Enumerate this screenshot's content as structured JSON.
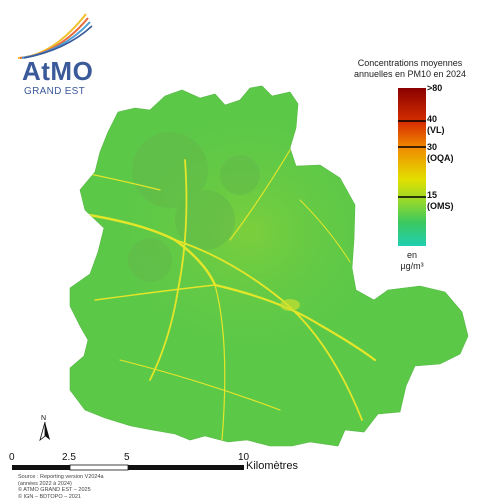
{
  "logo": {
    "name": "AtMO",
    "subtitle": "GRAND EST",
    "accent_colors": [
      "#f2c12e",
      "#e86a3a",
      "#4a9fd8",
      "#3b5a9a"
    ]
  },
  "legend": {
    "title_line1": "Concentrations moyennes",
    "title_line2": "annuelles en PM10 en 2024",
    "max_label": ">80",
    "thresholds": [
      {
        "value": "40",
        "name": "(VL)",
        "color": "#e8a200"
      },
      {
        "value": "30",
        "name": "(OQA)",
        "color": "#e8d400"
      },
      {
        "value": "15",
        "name": "(OMS)",
        "color": "#3fbf5f"
      }
    ],
    "unit_line1": "en",
    "unit_line2": "µg/m³",
    "colors": {
      "low": "#1fcfb0",
      "oms": "#58c84a",
      "oqa": "#e2e000",
      "vl": "#f08c00",
      "high": "#8a0000"
    }
  },
  "map": {
    "fill_color": "#5cc848",
    "road_color": "#e4e62a"
  },
  "north": {
    "letter": "N"
  },
  "scale": {
    "ticks": [
      "0",
      "2.5",
      "5",
      "10"
    ],
    "unit": "Kilomètres"
  },
  "source": {
    "line1": "Source : Reporting version V2024a",
    "line2": "(années 2022 à 2024)",
    "line3": "© ATMO GRAND EST – 2025",
    "line4": "© IGN – BDTOPO – 2021"
  }
}
